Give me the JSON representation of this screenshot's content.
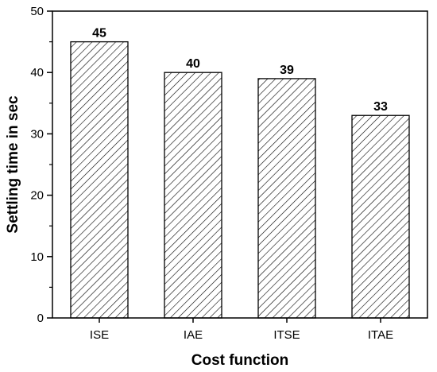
{
  "chart_data": {
    "type": "bar",
    "categories": [
      "ISE",
      "IAE",
      "ITSE",
      "ITAE"
    ],
    "values": [
      45,
      40,
      39,
      33
    ],
    "data_labels": [
      "45",
      "40",
      "39",
      "33"
    ],
    "title": "",
    "xlabel": "Cost function",
    "ylabel": "Settling time in sec",
    "ylim": [
      0,
      50
    ],
    "yticks": [
      0,
      10,
      20,
      30,
      40,
      50
    ],
    "grid": false,
    "bar_fill": "hatched",
    "colors": {
      "bar_stroke": "#000000",
      "hatch": "#000000",
      "background": "#ffffff"
    }
  }
}
